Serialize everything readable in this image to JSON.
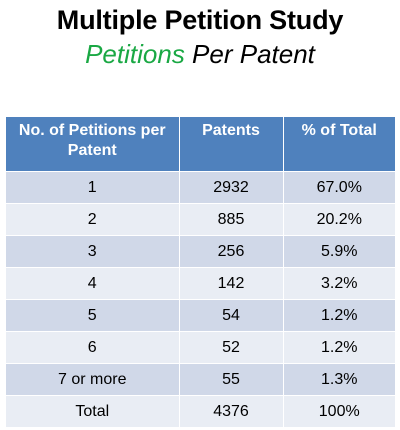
{
  "title": "Multiple Petition Study",
  "subtitle": {
    "accent": "Petitions",
    "rest": " Per Patent"
  },
  "colors": {
    "header_bg": "#4f81bd",
    "accent": "#1aa844",
    "row_dark": "#d0d8e8",
    "row_light": "#e9edf4"
  },
  "chart_data": {
    "type": "table",
    "columns": [
      "No. of Petitions per Patent",
      "Patents",
      "% of Total"
    ],
    "rows": [
      [
        "1",
        "2932",
        "67.0%"
      ],
      [
        "2",
        "885",
        "20.2%"
      ],
      [
        "3",
        "256",
        "5.9%"
      ],
      [
        "4",
        "142",
        "3.2%"
      ],
      [
        "5",
        "54",
        "1.2%"
      ],
      [
        "6",
        "52",
        "1.2%"
      ],
      [
        "7 or more",
        "55",
        "1.3%"
      ],
      [
        "Total",
        "4376",
        "100%"
      ]
    ]
  }
}
